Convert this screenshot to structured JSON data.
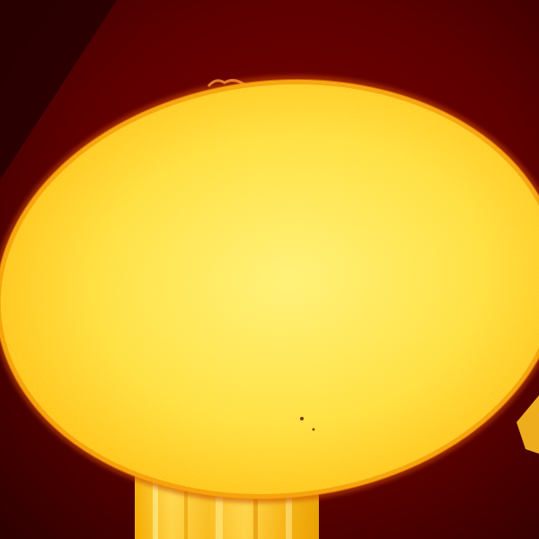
{
  "image": {
    "subject": "sun",
    "colors": {
      "sky_dark": "#2a0000",
      "sky_mid": "#6e0000",
      "sky_edge": "#8a0a00",
      "disk_center": "#fff27a",
      "disk_mid": "#ffd21a",
      "disk_edge": "#ff9a00",
      "limb": "#e86a00",
      "streak_light": "#ffe36a",
      "streak_dark": "#f0a800"
    }
  }
}
